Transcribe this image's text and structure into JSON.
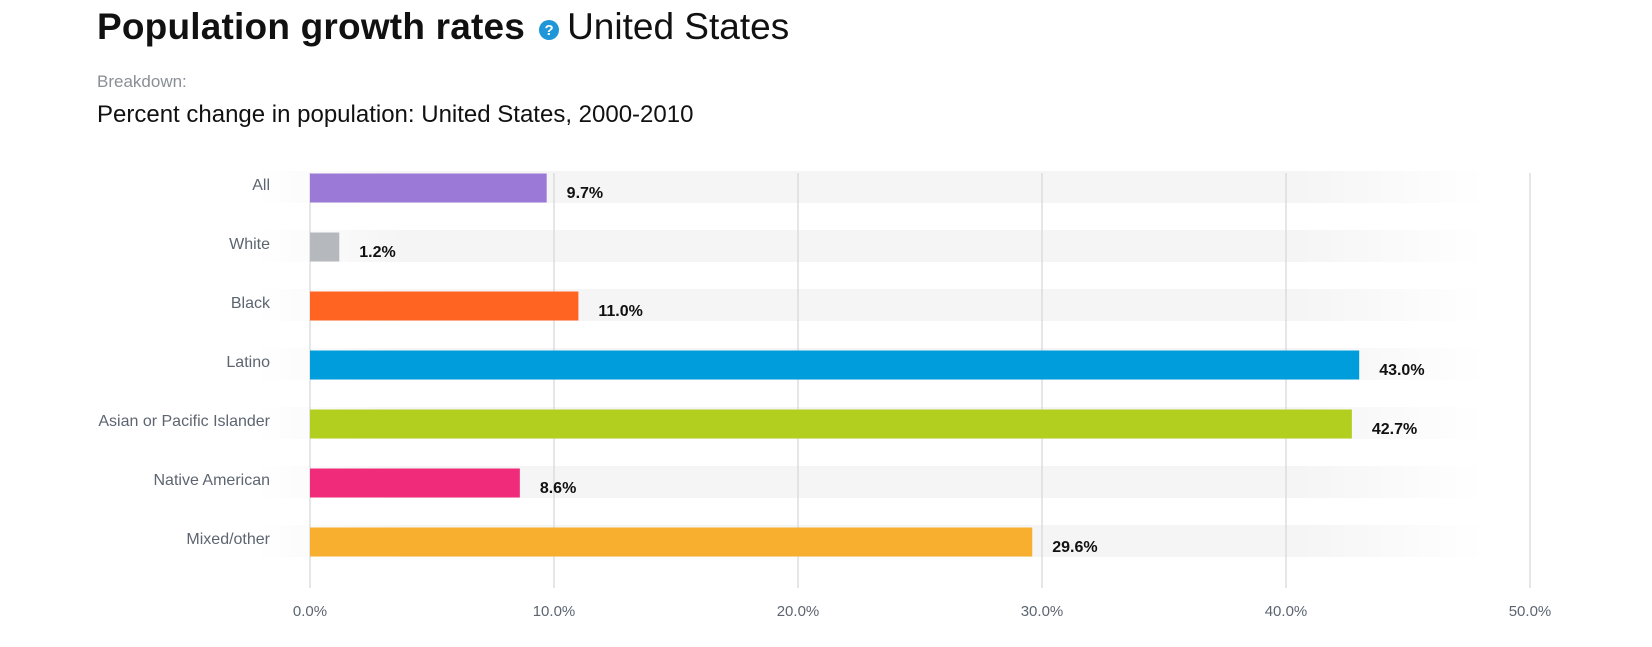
{
  "header": {
    "title": "Population growth rates",
    "help_icon": "question-circle-icon",
    "place": "United States"
  },
  "breakdown": {
    "label": "Breakdown:",
    "value": "Percent change in population: United States, 2000-2010"
  },
  "chart_data": {
    "type": "bar",
    "orientation": "horizontal",
    "categories": [
      "All",
      "White",
      "Black",
      "Latino",
      "Asian or Pacific Islander",
      "Native American",
      "Mixed/other"
    ],
    "values": [
      9.7,
      1.2,
      11.0,
      43.0,
      42.7,
      8.6,
      29.6
    ],
    "data_labels": [
      "9.7%",
      "1.2%",
      "11.0%",
      "43.0%",
      "42.7%",
      "8.6%",
      "29.6%"
    ],
    "colors": [
      "#9b79d6",
      "#b5b8bd",
      "#ff6422",
      "#009ddd",
      "#b2cf20",
      "#ef2b7a",
      "#f8ae2e"
    ],
    "xlim": [
      0,
      50
    ],
    "xticks": [
      0,
      10,
      20,
      30,
      40,
      50
    ],
    "xtick_labels": [
      "0.0%",
      "10.0%",
      "20.0%",
      "30.0%",
      "40.0%",
      "50.0%"
    ],
    "grid": true,
    "title": "",
    "xlabel": "",
    "ylabel": ""
  }
}
